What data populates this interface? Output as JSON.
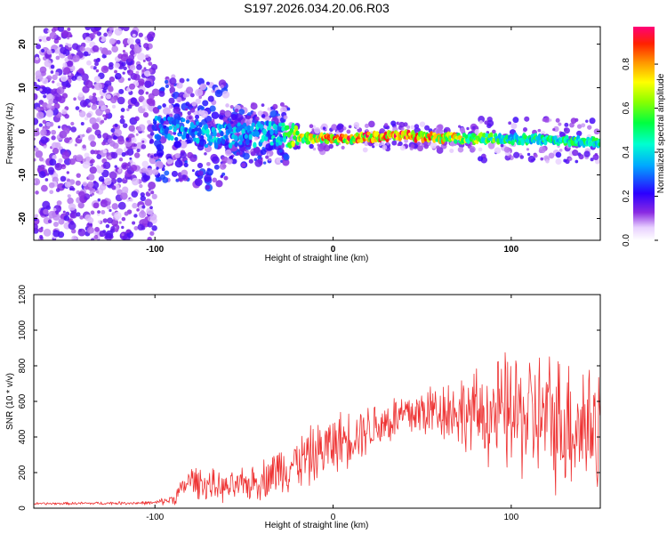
{
  "chart_data": [
    {
      "type": "heatmap",
      "title": "S197.2026.034.20.06.R03",
      "xlabel": "Height of straight line (km)",
      "ylabel": "Frequency (Hz)",
      "xlim": [
        -168,
        150
      ],
      "ylim": [
        -25,
        24
      ],
      "xticks": [
        -100,
        0,
        100
      ],
      "yticks": [
        -20,
        -10,
        0,
        10,
        20
      ],
      "colorbar": {
        "label": "Normalized spectral amplitude",
        "range": [
          0.0,
          0.97
        ],
        "ticks": [
          "0.0",
          "0.2",
          "0.4",
          "0.6",
          "0.8"
        ],
        "tick_values": [
          0.0,
          0.2,
          0.4,
          0.6,
          0.8
        ]
      },
      "ridge": [
        {
          "x": -100,
          "f": 1.0,
          "amp": 0.35
        },
        {
          "x": -85,
          "f": 0.5,
          "amp": 0.4
        },
        {
          "x": -70,
          "f": -1.0,
          "amp": 0.42
        },
        {
          "x": -50,
          "f": -0.8,
          "amp": 0.4
        },
        {
          "x": -30,
          "f": -0.5,
          "amp": 0.45
        },
        {
          "x": -20,
          "f": -1.5,
          "amp": 0.75
        },
        {
          "x": 0,
          "f": -1.8,
          "amp": 0.9
        },
        {
          "x": 20,
          "f": -1.3,
          "amp": 0.92
        },
        {
          "x": 40,
          "f": -1.0,
          "amp": 0.95
        },
        {
          "x": 60,
          "f": -1.5,
          "amp": 0.85
        },
        {
          "x": 80,
          "f": -1.6,
          "amp": 0.7
        },
        {
          "x": 100,
          "f": -1.8,
          "amp": 0.55
        },
        {
          "x": 120,
          "f": -2.0,
          "amp": 0.55
        },
        {
          "x": 150,
          "f": -2.5,
          "amp": 0.55
        }
      ]
    },
    {
      "type": "line",
      "xlabel": "Height of straight line (km)",
      "ylabel": "SNR (10 * v/v)",
      "xlim": [
        -168,
        150
      ],
      "ylim": [
        0,
        1200
      ],
      "xticks": [
        -100,
        0,
        100
      ],
      "yticks": [
        0,
        200,
        400,
        600,
        800,
        1000,
        1200
      ],
      "series": [
        {
          "name": "SNR",
          "color": "#ee3333",
          "envelope": {
            "x": [
              -168,
              -100,
              -90,
              -80,
              -70,
              -60,
              -50,
              -40,
              -30,
              -20,
              -10,
              0,
              20,
              40,
              60,
              80,
              100,
              120,
              150
            ],
            "mean": [
              25,
              30,
              50,
              160,
              130,
              110,
              130,
              160,
              220,
              260,
              300,
              360,
              450,
              520,
              560,
              530,
              530,
              500,
              460
            ],
            "spread": [
              8,
              12,
              40,
              100,
              110,
              90,
              110,
              130,
              170,
              180,
              200,
              200,
              170,
              170,
              200,
              280,
              420,
              450,
              480
            ]
          }
        }
      ]
    }
  ]
}
